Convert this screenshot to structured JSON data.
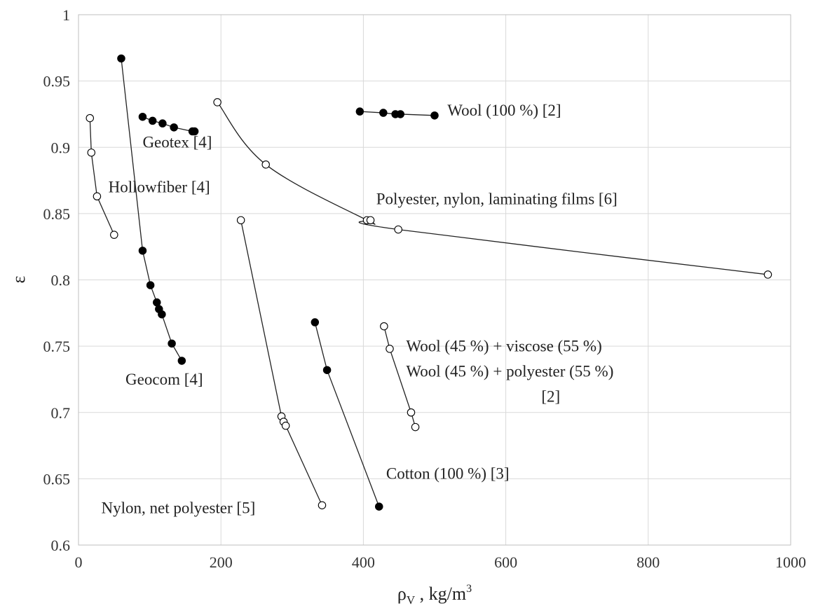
{
  "chart_data": {
    "type": "scatter",
    "title": "",
    "xlabel": "ρV , kg/m3",
    "xlabel_main": "ρ",
    "xlabel_sub": "V",
    "xlabel_rest": " , kg/m",
    "xlabel_sup": "3",
    "ylabel": "ε",
    "xlim": [
      0,
      1000
    ],
    "ylim": [
      0.6,
      1.0
    ],
    "x_ticks": [
      {
        "value": 0,
        "label": "0"
      },
      {
        "value": 200,
        "label": "200"
      },
      {
        "value": 400,
        "label": "400"
      },
      {
        "value": 600,
        "label": "600"
      },
      {
        "value": 800,
        "label": "800"
      },
      {
        "value": 1000,
        "label": "1000"
      }
    ],
    "y_ticks": [
      {
        "value": 0.6,
        "label": "0.6"
      },
      {
        "value": 0.65,
        "label": "0.65"
      },
      {
        "value": 0.7,
        "label": "0.7"
      },
      {
        "value": 0.75,
        "label": "0.75"
      },
      {
        "value": 0.8,
        "label": "0.8"
      },
      {
        "value": 0.85,
        "label": "0.85"
      },
      {
        "value": 0.9,
        "label": "0.9"
      },
      {
        "value": 0.95,
        "label": "0.95"
      },
      {
        "value": 1.0,
        "label": "1"
      }
    ],
    "grid": "horizontal and vertical",
    "legend": "none (inline annotations)",
    "series": [
      {
        "id": "wool-100",
        "marker": "filled",
        "smooth": false,
        "points": [
          [
            395,
            0.927
          ],
          [
            428,
            0.926
          ],
          [
            445,
            0.925
          ],
          [
            452,
            0.925
          ],
          [
            500,
            0.924
          ]
        ]
      },
      {
        "id": "geotex",
        "marker": "filled",
        "smooth": false,
        "points": [
          [
            90,
            0.923
          ],
          [
            104,
            0.92
          ],
          [
            118,
            0.918
          ],
          [
            134,
            0.915
          ],
          [
            160,
            0.912
          ],
          [
            163,
            0.912
          ]
        ]
      },
      {
        "id": "hollowfiber",
        "marker": "open",
        "smooth": false,
        "points": [
          [
            16,
            0.922
          ],
          [
            18,
            0.896
          ],
          [
            26,
            0.863
          ],
          [
            50,
            0.834
          ]
        ]
      },
      {
        "id": "geocom",
        "marker": "filled",
        "smooth": false,
        "points": [
          [
            60,
            0.967
          ],
          [
            90,
            0.822
          ],
          [
            101,
            0.796
          ],
          [
            110,
            0.783
          ],
          [
            113,
            0.778
          ],
          [
            117,
            0.774
          ],
          [
            131,
            0.752
          ],
          [
            145,
            0.739
          ]
        ]
      },
      {
        "id": "polyester-nylon-films",
        "marker": "open",
        "smooth": true,
        "points": [
          [
            195,
            0.934
          ],
          [
            263,
            0.887
          ],
          [
            405,
            0.845
          ],
          [
            410,
            0.845
          ],
          [
            449,
            0.838
          ],
          [
            968,
            0.804
          ]
        ]
      },
      {
        "id": "nylon-net-polyester",
        "marker": "open",
        "smooth": false,
        "points": [
          [
            228,
            0.845
          ],
          [
            285,
            0.697
          ],
          [
            288,
            0.693
          ],
          [
            291,
            0.69
          ],
          [
            342,
            0.63
          ]
        ]
      },
      {
        "id": "cotton-100",
        "marker": "filled",
        "smooth": false,
        "points": [
          [
            332,
            0.768
          ],
          [
            349,
            0.732
          ],
          [
            422,
            0.629
          ]
        ]
      },
      {
        "id": "wool-viscose-polyester",
        "marker": "open",
        "smooth": false,
        "points": [
          [
            429,
            0.765
          ],
          [
            437,
            0.748
          ],
          [
            467,
            0.7
          ],
          [
            473,
            0.689
          ]
        ]
      }
    ],
    "annotations": [
      {
        "text": "Wool (100 %) [2]",
        "anchor": [
          518,
          0.924
        ]
      },
      {
        "text": "Geotex [4]",
        "anchor": [
          90,
          0.9
        ]
      },
      {
        "text": "Hollowfiber  [4]",
        "anchor": [
          42,
          0.866
        ]
      },
      {
        "text": "Polyester, nylon, laminating  films  [6]",
        "anchor": [
          418,
          0.857
        ]
      },
      {
        "text": "Wool (45 %) + viscose  (55 %)",
        "anchor": [
          460,
          0.746
        ]
      },
      {
        "text": "Wool (45 %) + polyester  (55 %)",
        "anchor": [
          460,
          0.727
        ]
      },
      {
        "text": "[2]",
        "anchor": [
          650,
          0.708
        ]
      },
      {
        "text": "Geocom [4]",
        "anchor": [
          66,
          0.721
        ]
      },
      {
        "text": "Cotton (100 %) [3]",
        "anchor": [
          432,
          0.65
        ]
      },
      {
        "text": "Nylon,  net polyester [5]",
        "anchor": [
          32,
          0.624
        ]
      }
    ]
  }
}
